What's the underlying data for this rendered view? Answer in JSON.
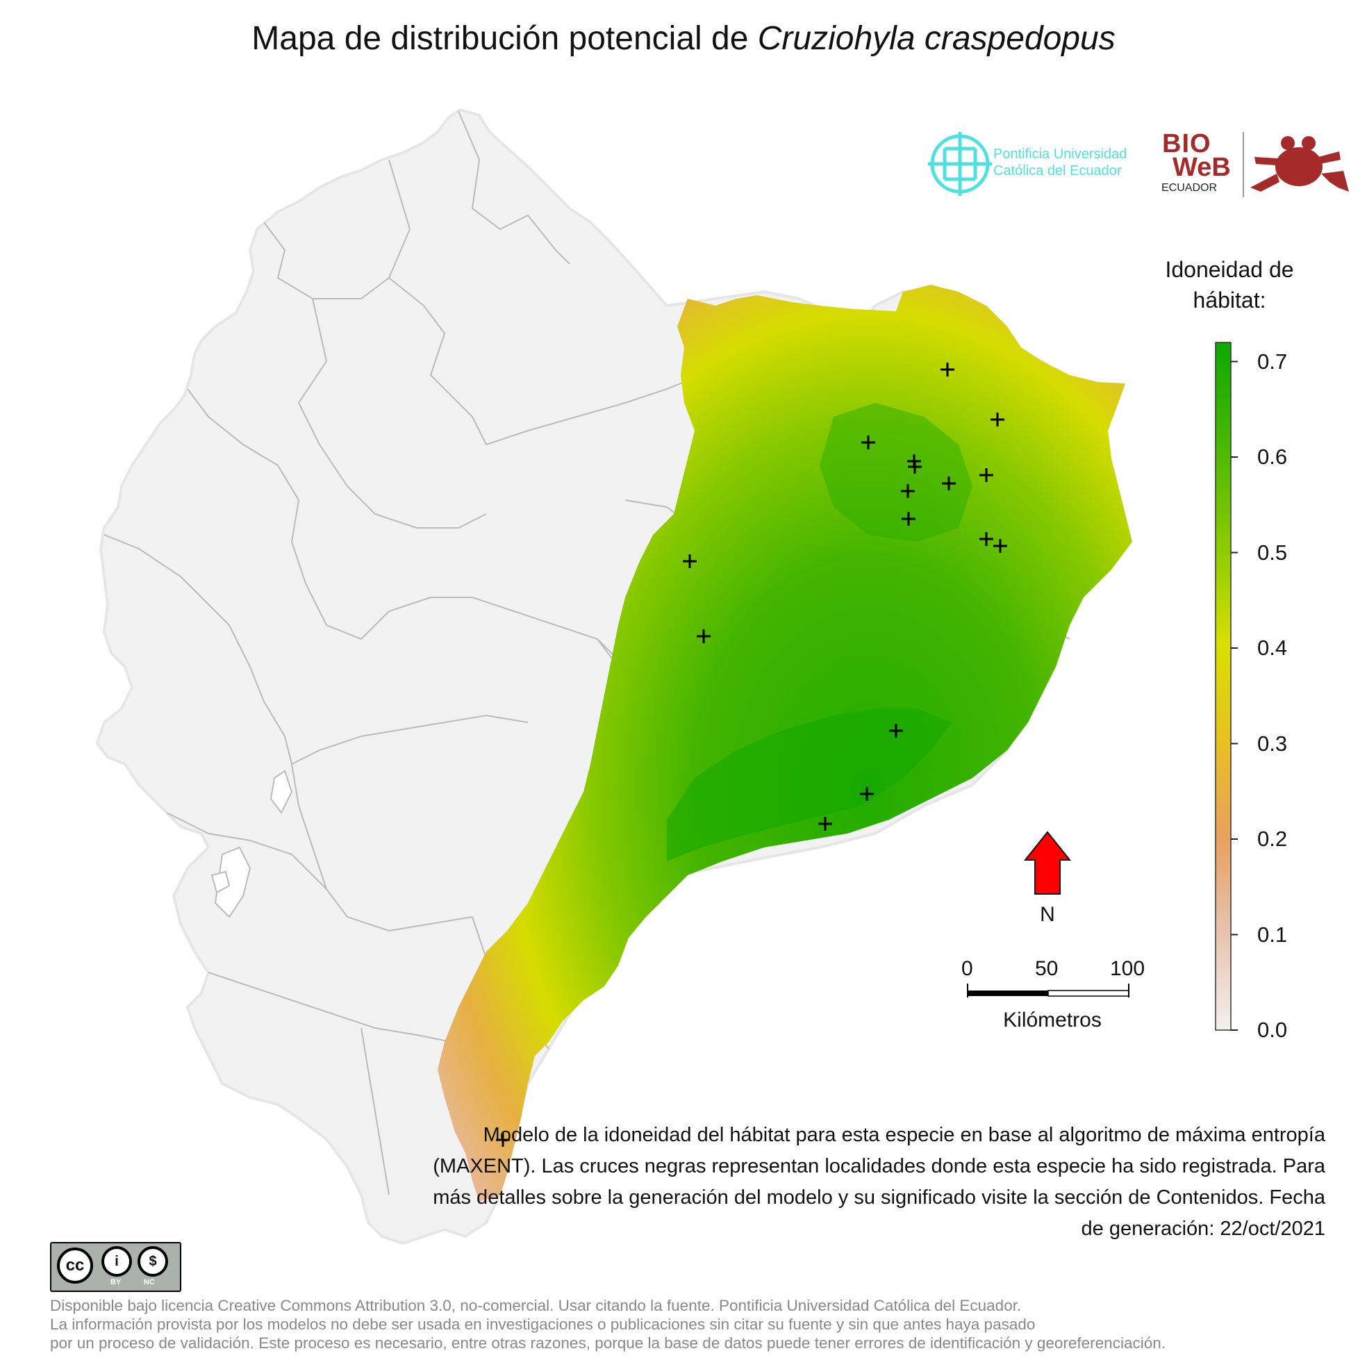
{
  "title": {
    "prefix": "Mapa de distribución potencial de ",
    "species": "Cruziohyla craspedopus"
  },
  "logos": {
    "pucp_name": "Pontificia Universidad Católica del Ecuador",
    "bioweb_bio": "BIO",
    "bioweb_web": "WeB",
    "bioweb_sub": "ECUADOR"
  },
  "legend": {
    "title": "Idoneidad de hábitat:",
    "ticks": [
      "0.7",
      "0.6",
      "0.5",
      "0.4",
      "0.3",
      "0.2",
      "0.1",
      "0.0"
    ],
    "tick_values": [
      0.7,
      0.6,
      0.5,
      0.4,
      0.3,
      0.2,
      0.1,
      0.0
    ],
    "max": 0.72,
    "min": 0.0,
    "colors": [
      "#f3f0ef",
      "#e8b898",
      "#e8b040",
      "#e6e000",
      "#9ccc00",
      "#5ab800",
      "#0ea800"
    ]
  },
  "north_arrow": {
    "label": "N",
    "color": "#ff0000"
  },
  "scale_bar": {
    "labels": [
      "0",
      "50",
      "100"
    ],
    "unit": "Kilómetros"
  },
  "caption": "Modelo de la idoneidad del hábitat para esta especie en base al algoritmo de máxima entropía (MAXENT). Las cruces negras representan localidades donde esta especie ha sido registrada. Para más detalles sobre la generación del modelo y su significado visite la sección de Contenidos. Fecha de generación: 22/oct/2021",
  "license_badge": [
    "BY",
    "NC"
  ],
  "license_text": [
    "Disponible bajo licencia Creative Commons Attribution 3.0, no-comercial. Usar citando la fuente. Pontificia Universidad Católica del Ecuador.",
    "La información provista por los modelos no debe ser usada en investigaciones o publicaciones sin citar su fuente y sin que antes haya pasado",
    "por un proceso de validación. Este proceso es necesario, entre otras razones, porque la base de datos puede tener errores de identificación y georeferenciación."
  ],
  "colors": {
    "land": "#f2f2f2",
    "border": "#bdbdbd",
    "high_suitability": "#0ea800",
    "low_suitability": "#e8b898",
    "marker": "#000000"
  }
}
